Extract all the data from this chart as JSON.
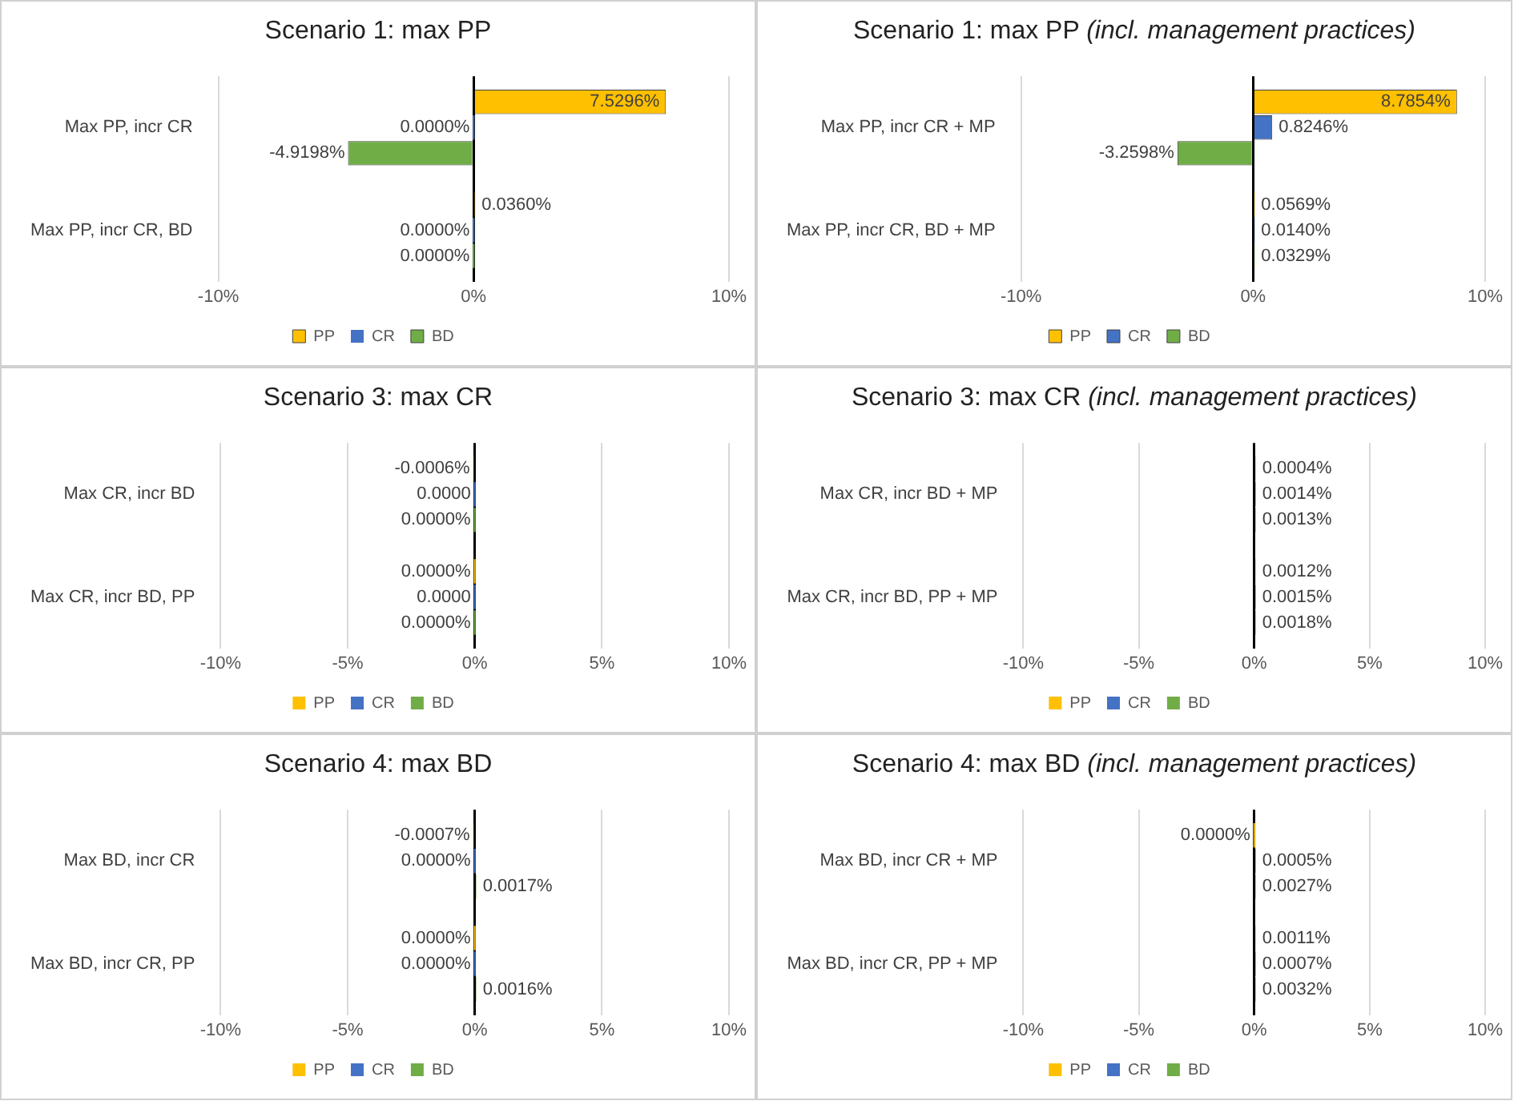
{
  "chart_data": [
    {
      "type": "bar",
      "orientation": "horizontal",
      "title": "Scenario 1: max PP",
      "categories": [
        "Max PP, incr CR",
        "Max PP, incr CR, BD"
      ],
      "series": [
        {
          "name": "PP",
          "color": "#ffc000",
          "values": [
            7.5296,
            0.036
          ],
          "value_labels": [
            "7.5296%",
            "0.0360%"
          ]
        },
        {
          "name": "CR",
          "color": "#4472c4",
          "values": [
            0,
            0
          ],
          "value_labels": [
            "0.0000%",
            "0.0000%"
          ]
        },
        {
          "name": "BD",
          "color": "#70ad47",
          "values": [
            -4.9198,
            0
          ],
          "value_labels": [
            "-4.9198%",
            "0.0000%"
          ]
        }
      ],
      "xlim": [
        -10,
        10
      ],
      "xticks": [
        {
          "value": -10,
          "label": "-10%"
        },
        {
          "value": 0,
          "label": "0%"
        },
        {
          "value": 10,
          "label": "10%"
        }
      ],
      "grid": "x",
      "legend": "bottom"
    },
    {
      "type": "bar",
      "orientation": "horizontal",
      "title": "Scenario 1: max PP",
      "subtitle": "(incl. management practices)",
      "categories": [
        "Max PP, incr CR + MP",
        "Max PP, incr CR, BD + MP"
      ],
      "series": [
        {
          "name": "PP",
          "color": "#ffc000",
          "values": [
            8.7854,
            0.0569
          ],
          "value_labels": [
            "8.7854%",
            "0.0569%"
          ]
        },
        {
          "name": "CR",
          "color": "#4472c4",
          "values": [
            0.8246,
            0.014
          ],
          "value_labels": [
            "0.8246%",
            "0.0140%"
          ]
        },
        {
          "name": "BD",
          "color": "#70ad47",
          "values": [
            -3.2598,
            0.0329
          ],
          "value_labels": [
            "-3.2598%",
            "0.0329%"
          ]
        }
      ],
      "xlim": [
        -10,
        10
      ],
      "xticks": [
        {
          "value": -10,
          "label": "-10%"
        },
        {
          "value": 0,
          "label": "0%"
        },
        {
          "value": 10,
          "label": "10%"
        }
      ],
      "grid": "x",
      "legend": "bottom"
    },
    {
      "type": "bar",
      "orientation": "horizontal",
      "title": "Scenario 3: max CR",
      "categories": [
        "Max CR, incr BD",
        "Max CR, incr BD, PP"
      ],
      "series": [
        {
          "name": "PP",
          "color": "#ffc000",
          "values": [
            -0.0006,
            0
          ],
          "value_labels": [
            "-0.0006%",
            "0.0000%"
          ]
        },
        {
          "name": "CR",
          "color": "#4472c4",
          "values": [
            0,
            0
          ],
          "value_labels": [
            "0.0000",
            "0.0000"
          ]
        },
        {
          "name": "BD",
          "color": "#70ad47",
          "values": [
            0,
            0
          ],
          "value_labels": [
            "0.0000%",
            "0.0000%"
          ]
        }
      ],
      "xlim": [
        -10,
        10
      ],
      "xticks": [
        {
          "value": -10,
          "label": "-10%"
        },
        {
          "value": -5,
          "label": "-5%"
        },
        {
          "value": 0,
          "label": "0%"
        },
        {
          "value": 5,
          "label": "5%"
        },
        {
          "value": 10,
          "label": "10%"
        }
      ],
      "grid": "x",
      "legend": "bottom"
    },
    {
      "type": "bar",
      "orientation": "horizontal",
      "title": "Scenario 3: max CR",
      "subtitle": "(incl. management practices)",
      "categories": [
        "Max CR, incr BD + MP",
        "Max CR, incr BD, PP + MP"
      ],
      "series": [
        {
          "name": "PP",
          "color": "#ffc000",
          "values": [
            0.0004,
            0.0012
          ],
          "value_labels": [
            "0.0004%",
            "0.0012%"
          ]
        },
        {
          "name": "CR",
          "color": "#4472c4",
          "values": [
            0.0014,
            0.0015
          ],
          "value_labels": [
            "0.0014%",
            "0.0015%"
          ]
        },
        {
          "name": "BD",
          "color": "#70ad47",
          "values": [
            0.0013,
            0.0018
          ],
          "value_labels": [
            "0.0013%",
            "0.0018%"
          ]
        }
      ],
      "xlim": [
        -10,
        10
      ],
      "xticks": [
        {
          "value": -10,
          "label": "-10%"
        },
        {
          "value": -5,
          "label": "-5%"
        },
        {
          "value": 0,
          "label": "0%"
        },
        {
          "value": 5,
          "label": "5%"
        },
        {
          "value": 10,
          "label": "10%"
        }
      ],
      "grid": "x",
      "legend": "bottom"
    },
    {
      "type": "bar",
      "orientation": "horizontal",
      "title": "Scenario 4: max BD",
      "categories": [
        "Max BD, incr CR",
        "Max BD, incr CR, PP"
      ],
      "series": [
        {
          "name": "PP",
          "color": "#ffc000",
          "values": [
            -0.0007,
            0
          ],
          "value_labels": [
            "-0.0007%",
            "0.0000%"
          ]
        },
        {
          "name": "CR",
          "color": "#4472c4",
          "values": [
            0,
            0
          ],
          "value_labels": [
            "0.0000%",
            "0.0000%"
          ]
        },
        {
          "name": "BD",
          "color": "#70ad47",
          "values": [
            0.0017,
            0.0016
          ],
          "value_labels": [
            "0.0017%",
            "0.0016%"
          ]
        }
      ],
      "xlim": [
        -10,
        10
      ],
      "xticks": [
        {
          "value": -10,
          "label": "-10%"
        },
        {
          "value": -5,
          "label": "-5%"
        },
        {
          "value": 0,
          "label": "0%"
        },
        {
          "value": 5,
          "label": "5%"
        },
        {
          "value": 10,
          "label": "10%"
        }
      ],
      "grid": "x",
      "legend": "bottom"
    },
    {
      "type": "bar",
      "orientation": "horizontal",
      "title": "Scenario 4: max BD",
      "subtitle": "(incl. management practices)",
      "categories": [
        "Max BD, incr CR + MP",
        "Max BD, incr CR, PP + MP"
      ],
      "series": [
        {
          "name": "PP",
          "color": "#ffc000",
          "values": [
            0,
            0.0011
          ],
          "value_labels": [
            "0.0000%",
            "0.0011%"
          ]
        },
        {
          "name": "CR",
          "color": "#4472c4",
          "values": [
            0.0005,
            0.0007
          ],
          "value_labels": [
            "0.0005%",
            "0.0007%"
          ]
        },
        {
          "name": "BD",
          "color": "#70ad47",
          "values": [
            0.0027,
            0.0032
          ],
          "value_labels": [
            "0.0027%",
            "0.0032%"
          ]
        }
      ],
      "xlim": [
        -10,
        10
      ],
      "xticks": [
        {
          "value": -10,
          "label": "-10%"
        },
        {
          "value": -5,
          "label": "-5%"
        },
        {
          "value": 0,
          "label": "0%"
        },
        {
          "value": 5,
          "label": "5%"
        },
        {
          "value": 10,
          "label": "10%"
        }
      ],
      "grid": "x",
      "legend": "bottom"
    }
  ]
}
